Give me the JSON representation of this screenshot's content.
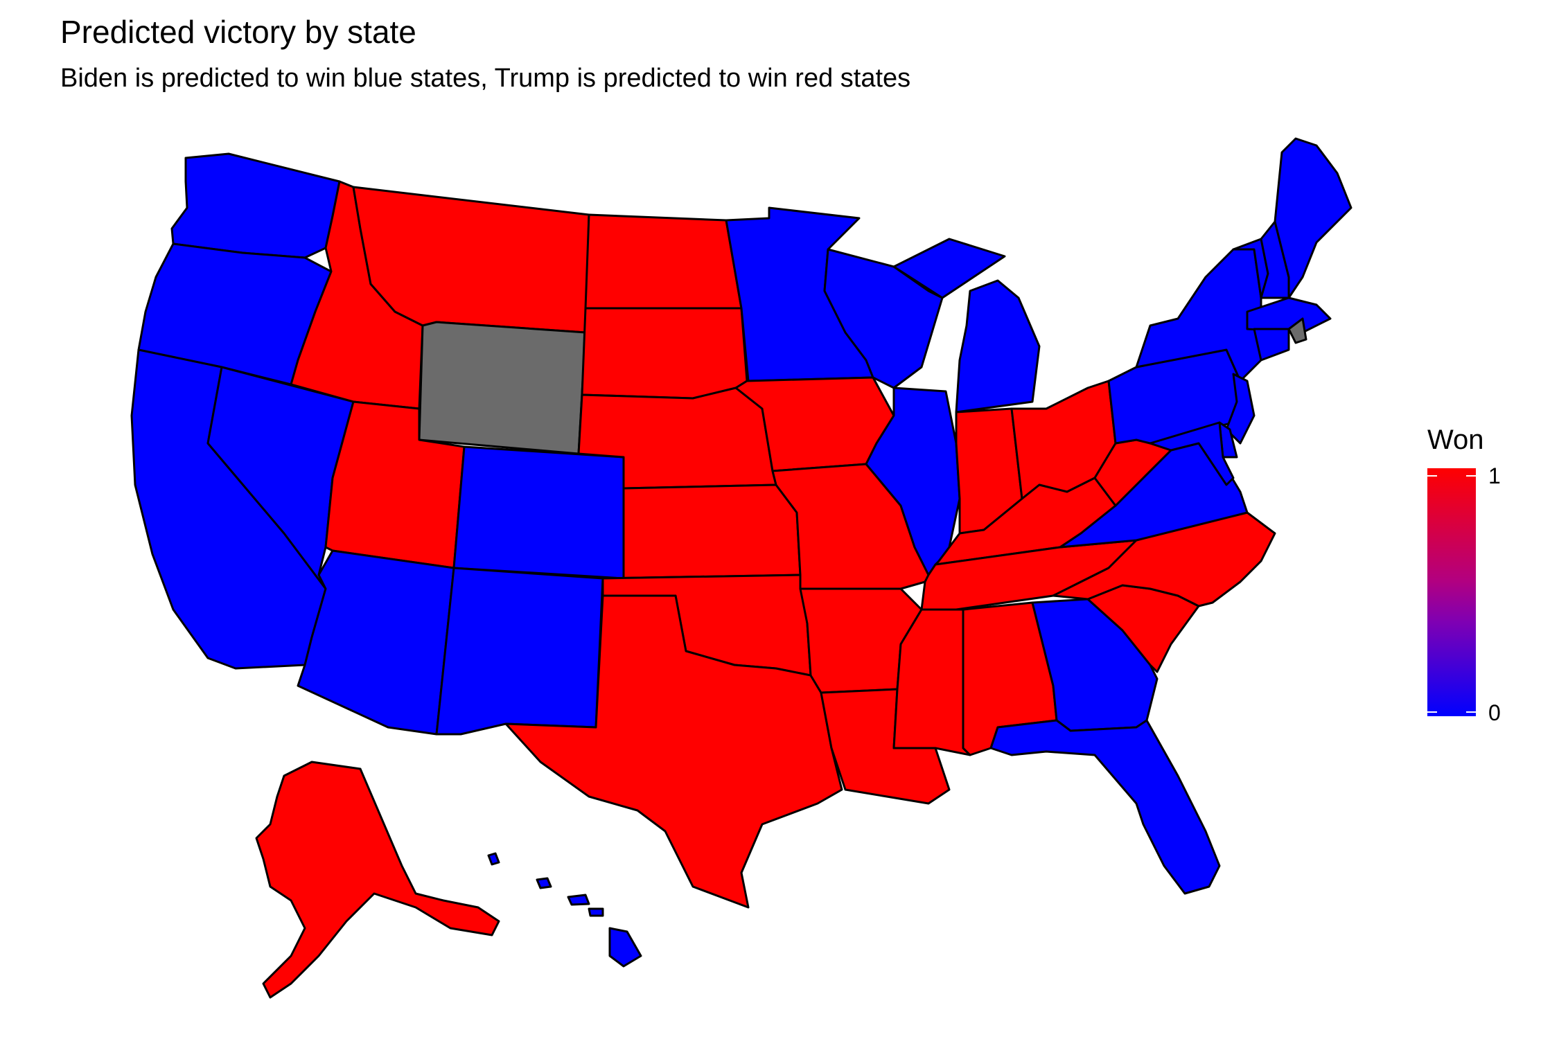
{
  "title": "Predicted victory by state",
  "subtitle": "Biden is predicted to win blue states, Trump is predicted to win red states",
  "colors": {
    "won_1": "#ff0000",
    "won_0": "#0000ff",
    "missing": "#6b6b6b",
    "border": "#000000"
  },
  "legend": {
    "title": "Won",
    "tick_high": "1",
    "tick_low": "0"
  },
  "states": [
    {
      "name": "Washington",
      "won": 0
    },
    {
      "name": "Oregon",
      "won": 0
    },
    {
      "name": "California",
      "won": 0
    },
    {
      "name": "Nevada",
      "won": 0
    },
    {
      "name": "Idaho",
      "won": 1
    },
    {
      "name": "Montana",
      "won": 1
    },
    {
      "name": "Wyoming",
      "won": null
    },
    {
      "name": "Utah",
      "won": 1
    },
    {
      "name": "Arizona",
      "won": 0
    },
    {
      "name": "Colorado",
      "won": 0
    },
    {
      "name": "New Mexico",
      "won": 0
    },
    {
      "name": "North Dakota",
      "won": 1
    },
    {
      "name": "South Dakota",
      "won": 1
    },
    {
      "name": "Nebraska",
      "won": 1
    },
    {
      "name": "Kansas",
      "won": 1
    },
    {
      "name": "Oklahoma",
      "won": 1
    },
    {
      "name": "Texas",
      "won": 1
    },
    {
      "name": "Minnesota",
      "won": 0
    },
    {
      "name": "Iowa",
      "won": 1
    },
    {
      "name": "Missouri",
      "won": 1
    },
    {
      "name": "Arkansas",
      "won": 1
    },
    {
      "name": "Louisiana",
      "won": 1
    },
    {
      "name": "Wisconsin",
      "won": 0
    },
    {
      "name": "Illinois",
      "won": 0
    },
    {
      "name": "Michigan",
      "won": 0
    },
    {
      "name": "Indiana",
      "won": 1
    },
    {
      "name": "Ohio",
      "won": 1
    },
    {
      "name": "Kentucky",
      "won": 1
    },
    {
      "name": "Tennessee",
      "won": 1
    },
    {
      "name": "Mississippi",
      "won": 1
    },
    {
      "name": "Alabama",
      "won": 1
    },
    {
      "name": "Georgia",
      "won": 0
    },
    {
      "name": "Florida",
      "won": 0
    },
    {
      "name": "South Carolina",
      "won": 1
    },
    {
      "name": "North Carolina",
      "won": 1
    },
    {
      "name": "Virginia",
      "won": 0
    },
    {
      "name": "West Virginia",
      "won": 1
    },
    {
      "name": "Pennsylvania",
      "won": 0
    },
    {
      "name": "New York",
      "won": 0
    },
    {
      "name": "Vermont",
      "won": 0
    },
    {
      "name": "New Hampshire",
      "won": 0
    },
    {
      "name": "Maine",
      "won": 0
    },
    {
      "name": "Massachusetts",
      "won": 0
    },
    {
      "name": "Rhode Island",
      "won": null
    },
    {
      "name": "Connecticut",
      "won": 0
    },
    {
      "name": "New Jersey",
      "won": 0
    },
    {
      "name": "Delaware",
      "won": 0
    },
    {
      "name": "Maryland",
      "won": 0
    },
    {
      "name": "Alaska",
      "won": 1
    },
    {
      "name": "Hawaii",
      "won": 0
    }
  ]
}
